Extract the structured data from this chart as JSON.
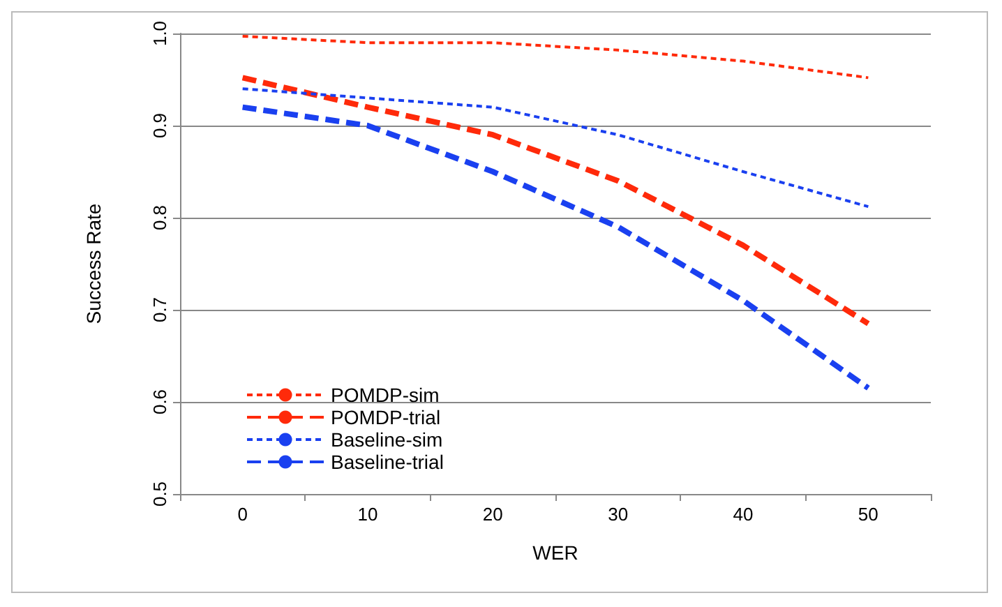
{
  "chart_data": {
    "type": "line",
    "xlabel": "WER",
    "ylabel": "Success Rate",
    "categories": [
      "0",
      "10",
      "20",
      "30",
      "40",
      "50"
    ],
    "ylim": [
      0.5,
      1.0
    ],
    "yticks": [
      {
        "value": 0.5,
        "label": "0.5"
      },
      {
        "value": 0.6,
        "label": "0.6"
      },
      {
        "value": 0.7,
        "label": "0.7"
      },
      {
        "value": 0.8,
        "label": "0.8"
      },
      {
        "value": 0.9,
        "label": "0.9"
      },
      {
        "value": 1.0,
        "label": "1.0"
      }
    ],
    "grid": "y",
    "legend": "left",
    "marker": "none",
    "series": [
      {
        "name": "POMDP-sim",
        "color": "#ff2a0a",
        "line_style": "dotted",
        "values": [
          0.997,
          0.99,
          0.99,
          0.982,
          0.97,
          0.952
        ]
      },
      {
        "name": "POMDP-trial",
        "color": "#ff2a0a",
        "line_style": "dashed",
        "values": [
          0.952,
          0.92,
          0.89,
          0.84,
          0.77,
          0.685
        ]
      },
      {
        "name": "Baseline-sim",
        "color": "#1a40f0",
        "line_style": "dotted",
        "values": [
          0.94,
          0.93,
          0.92,
          0.89,
          0.85,
          0.812
        ]
      },
      {
        "name": "Baseline-trial",
        "color": "#1a40f0",
        "line_style": "dashed",
        "values": [
          0.92,
          0.9,
          0.85,
          0.79,
          0.71,
          0.615
        ]
      }
    ]
  }
}
